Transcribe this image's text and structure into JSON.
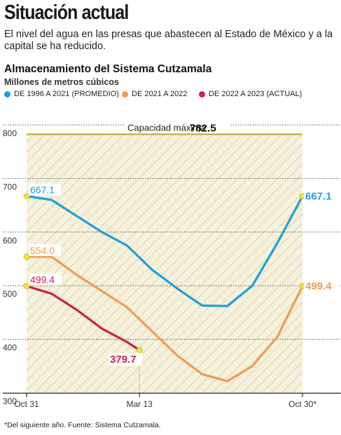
{
  "headline": "Situación actual",
  "subtitle": "El nivel del agua en las presas que abastecen al Estado de México y a la capital se ha reducido.",
  "source": "*Del siguiente año. Fuente: Sistema Cutzamala.",
  "colors": {
    "blue": "#1e9fdc",
    "orange": "#f39a4e",
    "red": "#d11e4a",
    "shade": "#f6f1dc",
    "hatch": "#d9cc9a",
    "capacity_line": "#b5a632",
    "marker": "#f2e23c"
  },
  "chart_data": {
    "type": "line",
    "title": "Almacenamiento del Sistema Cutzamala",
    "ylabel": "Millones de metros cúbicos",
    "ylim": [
      300,
      800
    ],
    "yticks": [
      "800",
      "700",
      "600",
      "500",
      "400",
      "300"
    ],
    "x_ticks": [
      "Oct 31",
      "Mar 13",
      "Oct 30*"
    ],
    "x_tick_positions": [
      0,
      4.5,
      11
    ],
    "legend_position": "top",
    "capacity": {
      "label": "Capacidad máxima",
      "value": 782.5,
      "value_label": "782.5"
    },
    "series": [
      {
        "name": "DE 1996 A 2021 (PROMEDIO)",
        "color": "#1e9fdc",
        "x": [
          0,
          1,
          2,
          3,
          4,
          5,
          6,
          7,
          8,
          9,
          10,
          11
        ],
        "values": [
          667.1,
          660,
          630,
          600,
          575,
          530,
          495,
          463,
          462,
          500,
          580,
          667.1
        ],
        "start_label": "667.1",
        "end_label": "667.1"
      },
      {
        "name": "DE 2021 A 2022",
        "color": "#f39a4e",
        "x": [
          0,
          1,
          2,
          3,
          4,
          5,
          6,
          7,
          8,
          9,
          10,
          11
        ],
        "values": [
          554.0,
          554,
          520,
          490,
          460,
          415,
          370,
          335,
          322,
          350,
          405,
          499.4
        ],
        "start_label": "554.0",
        "end_label": "499.4"
      },
      {
        "name": "DE 2022 A 2023 (ACTUAL)",
        "color": "#d11e4a",
        "x": [
          0,
          1,
          2,
          3,
          4,
          4.5
        ],
        "values": [
          499.4,
          485,
          455,
          420,
          395,
          379.7
        ],
        "start_label": "499.4",
        "end_label": "379.7"
      }
    ]
  }
}
